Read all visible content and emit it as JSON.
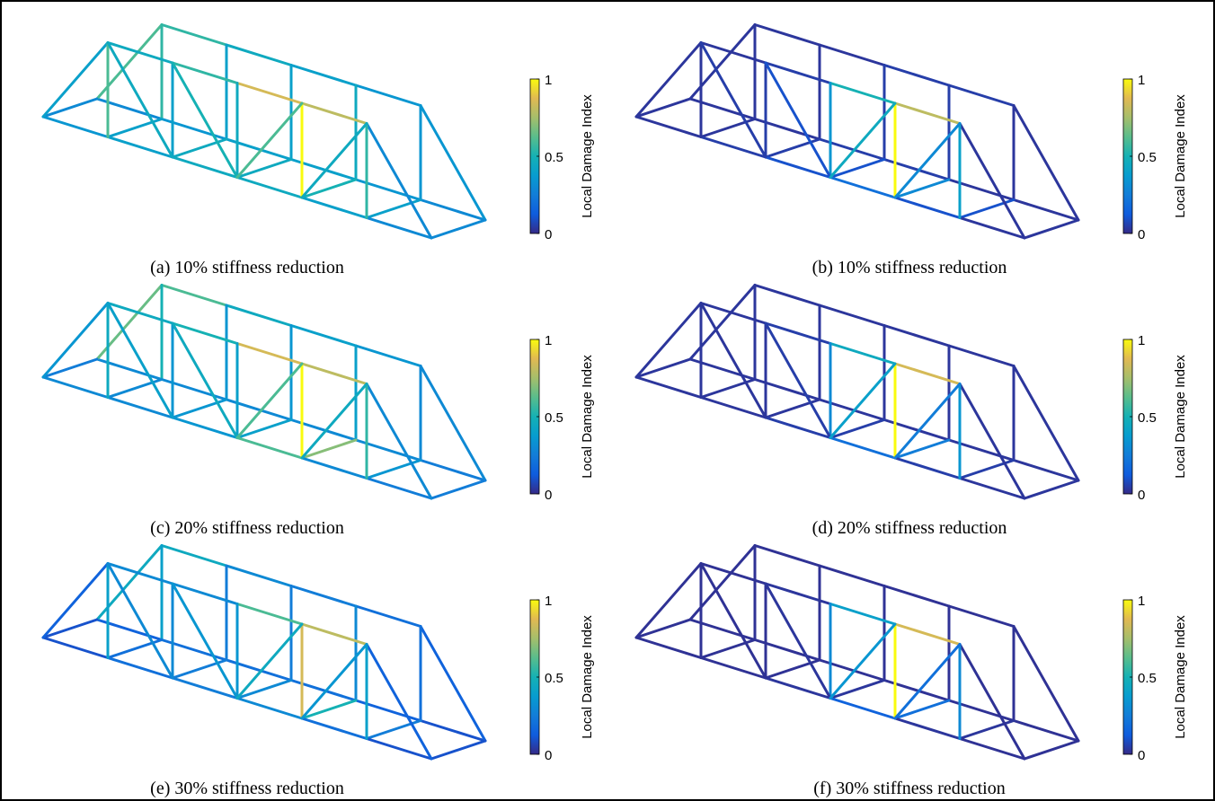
{
  "panels": [
    {
      "caption": "(a) 10% stiffness reduction",
      "colorbar": {
        "label": "Local Damage Index",
        "limits": [
          0,
          1
        ],
        "ticks": [
          0,
          0.5,
          1
        ]
      },
      "damage": [
        0.35,
        0.4,
        0.45,
        0.45,
        0.4,
        0.3,
        0.3,
        0.35,
        0.4,
        0.4,
        0.35,
        0.3,
        0.45,
        0.55,
        0.85,
        0.8,
        0.55,
        0.45,
        0.4,
        0.35,
        0.4,
        0.3,
        0.6,
        0.35,
        0.6,
        0.4,
        0.45,
        1,
        0.55,
        0.55,
        0.4,
        0.4,
        0.45,
        0.35,
        0.3,
        0.4,
        0.45,
        0.45,
        0.5,
        0.4,
        0.3,
        0.45,
        0.5,
        0.6,
        0.45
      ]
    },
    {
      "caption": "(b) 10% stiffness reduction",
      "colorbar": {
        "label": "Local Damage Index",
        "limits": [
          0,
          1
        ],
        "ticks": [
          0,
          0.5,
          1
        ]
      },
      "damage": [
        0.03,
        0.05,
        0.1,
        0.2,
        0.1,
        0.03,
        0.03,
        0.03,
        0.05,
        0.05,
        0.03,
        0.03,
        0.03,
        0.05,
        0.5,
        0.8,
        0.03,
        0.03,
        0.05,
        0.05,
        0.03,
        0.03,
        0.03,
        0.03,
        0.03,
        0.05,
        0.35,
        1,
        0.4,
        0.03,
        0.03,
        0.05,
        0.05,
        0.03,
        0.03,
        0.03,
        0.05,
        0.1,
        0.3,
        0.1,
        0.03,
        0.05,
        0.1,
        0.45,
        0.3
      ]
    },
    {
      "caption": "(c) 20% stiffness reduction",
      "colorbar": {
        "label": "Local Damage Index",
        "limits": [
          0,
          1
        ],
        "ticks": [
          0,
          0.5,
          1
        ]
      },
      "damage": [
        0.3,
        0.3,
        0.35,
        0.6,
        0.3,
        0.25,
        0.3,
        0.3,
        0.3,
        0.3,
        0.3,
        0.25,
        0.45,
        0.5,
        0.85,
        0.8,
        0.6,
        0.45,
        0.4,
        0.35,
        0.35,
        0.3,
        0.65,
        0.3,
        0.45,
        0.35,
        0.4,
        1,
        0.55,
        0.5,
        0.35,
        0.35,
        0.4,
        0.3,
        0.25,
        0.3,
        0.35,
        0.4,
        0.7,
        0.35,
        0.25,
        0.4,
        0.45,
        0.6,
        0.45
      ]
    },
    {
      "caption": "(d) 20% stiffness reduction",
      "colorbar": {
        "label": "Local Damage Index",
        "limits": [
          0,
          1
        ],
        "ticks": [
          0,
          0.5,
          1
        ]
      },
      "damage": [
        0.03,
        0.03,
        0.05,
        0.2,
        0.05,
        0.03,
        0.03,
        0.03,
        0.03,
        0.03,
        0.03,
        0.03,
        0.03,
        0.05,
        0.45,
        0.85,
        0.03,
        0.03,
        0.03,
        0.03,
        0.03,
        0.03,
        0.03,
        0.03,
        0.03,
        0.03,
        0.3,
        1,
        0.35,
        0.03,
        0.03,
        0.03,
        0.03,
        0.03,
        0.03,
        0.03,
        0.03,
        0.05,
        0.25,
        0.05,
        0.03,
        0.03,
        0.05,
        0.4,
        0.25
      ]
    },
    {
      "caption": "(e) 30% stiffness reduction",
      "colorbar": {
        "label": "Local Damage Index",
        "limits": [
          0,
          1
        ],
        "ticks": [
          0,
          0.5,
          1
        ]
      },
      "damage": [
        0.1,
        0.2,
        0.25,
        0.3,
        0.2,
        0.1,
        0.15,
        0.2,
        0.2,
        0.2,
        0.15,
        0.1,
        0.3,
        0.3,
        0.6,
        0.8,
        0.45,
        0.3,
        0.25,
        0.2,
        0.15,
        0.15,
        0.45,
        0.15,
        0.4,
        0.3,
        0.35,
        0.85,
        0.4,
        0.4,
        0.25,
        0.25,
        0.3,
        0.2,
        0.1,
        0.2,
        0.25,
        0.3,
        0.5,
        0.25,
        0.1,
        0.3,
        0.35,
        0.45,
        0.35
      ]
    },
    {
      "caption": "(f) 30% stiffness reduction",
      "colorbar": {
        "label": "Local Damage Index",
        "limits": [
          0,
          1
        ],
        "ticks": [
          0,
          0.5,
          1
        ]
      },
      "damage": [
        0.02,
        0.02,
        0.03,
        0.15,
        0.03,
        0.02,
        0.02,
        0.02,
        0.02,
        0.02,
        0.02,
        0.02,
        0.02,
        0.03,
        0.4,
        0.85,
        0.02,
        0.02,
        0.02,
        0.02,
        0.02,
        0.02,
        0.02,
        0.02,
        0.02,
        0.02,
        0.3,
        1,
        0.3,
        0.02,
        0.02,
        0.02,
        0.02,
        0.02,
        0.02,
        0.02,
        0.02,
        0.03,
        0.2,
        0.03,
        0.02,
        0.02,
        0.03,
        0.35,
        0.2
      ]
    }
  ]
}
